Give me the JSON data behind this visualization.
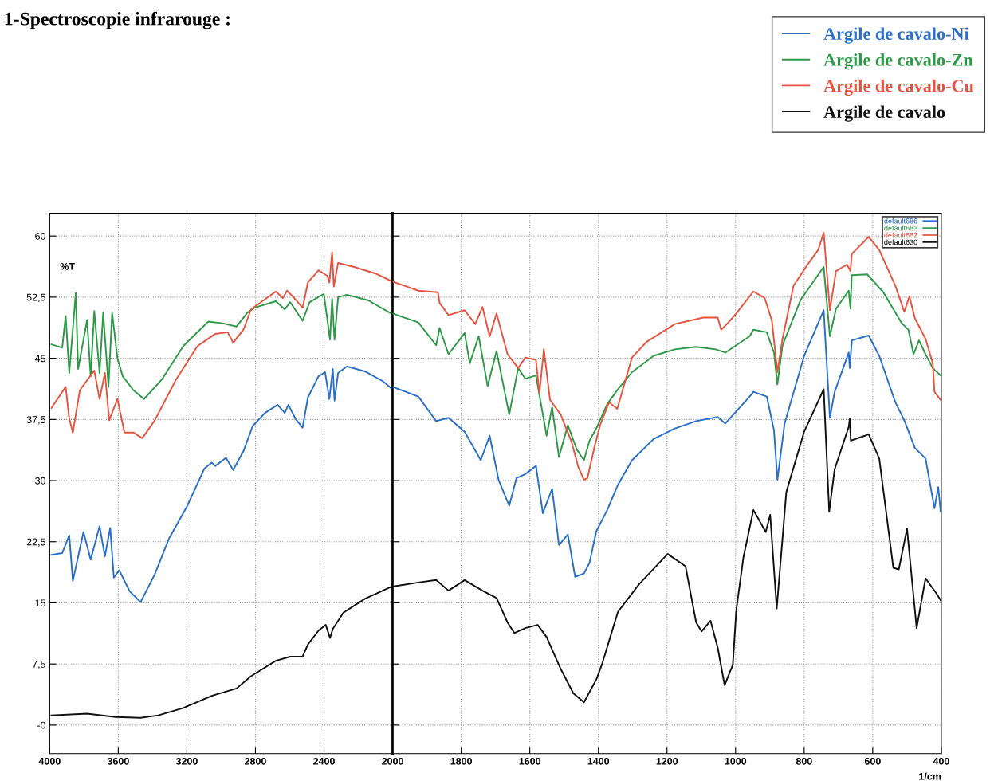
{
  "chart_data": [
    {
      "type": "line",
      "title": "1-Spectroscopie infrarouge :",
      "ylabel": "%T",
      "xlim": [
        4000,
        2000
      ],
      "xticks": [
        4000,
        3600,
        3200,
        2800,
        2400,
        2000
      ],
      "ylim": [
        -3.5,
        62.8
      ],
      "yticks": [
        {
          "value": 0,
          "label": "-0"
        },
        {
          "value": 7.5,
          "label": "7,5"
        },
        15,
        {
          "value": 22.5,
          "label": "22,5"
        },
        30,
        {
          "value": 37.5,
          "label": "37,5"
        },
        45,
        {
          "value": 52.5,
          "label": "52,5"
        },
        60
      ],
      "grid": true,
      "line_style": "solid",
      "series": [
        {
          "color": "#2a6fc9",
          "x": [
            3990,
            3927,
            3886,
            3865,
            3803,
            3761,
            3709,
            3678,
            3647,
            3626,
            3595,
            3533,
            3470,
            3387,
            3304,
            3200,
            3097,
            3055,
            3034,
            2972,
            2930,
            2868,
            2816,
            2744,
            2671,
            2629,
            2608,
            2567,
            2525,
            2494,
            2432,
            2394,
            2369,
            2349,
            2339,
            2318,
            2266,
            2162,
            2058,
            2006,
            2000
          ],
          "values": [
            20.9,
            21.1,
            23.3,
            17.7,
            23.7,
            20.3,
            24.4,
            20.7,
            24.2,
            18.1,
            19.0,
            16.4,
            15.1,
            18.5,
            22.9,
            26.8,
            31.5,
            32.2,
            31.8,
            32.8,
            31.3,
            33.7,
            36.7,
            38.3,
            39.3,
            38.3,
            39.3,
            37.6,
            36.5,
            40.2,
            42.8,
            43.3,
            40.0,
            43.7,
            39.8,
            43.2,
            44.0,
            43.4,
            42.2,
            41.3,
            41.5
          ]
        },
        {
          "color": "#2e9a48",
          "x": [
            3990,
            3927,
            3907,
            3886,
            3848,
            3834,
            3782,
            3761,
            3740,
            3709,
            3688,
            3657,
            3636,
            3605,
            3574,
            3512,
            3450,
            3346,
            3221,
            3076,
            2993,
            2910,
            2847,
            2806,
            2681,
            2629,
            2598,
            2525,
            2484,
            2401,
            2365,
            2353,
            2339,
            2318,
            2266,
            2141,
            2017,
            2000
          ],
          "values": [
            46.7,
            46.3,
            50.2,
            43.2,
            53.0,
            43.7,
            49.7,
            42.8,
            50.8,
            43.2,
            50.6,
            41.5,
            50.6,
            45.0,
            42.8,
            41.1,
            40.0,
            42.4,
            46.5,
            49.5,
            49.3,
            48.9,
            50.6,
            51.2,
            52.0,
            51.0,
            51.9,
            49.6,
            51.9,
            52.9,
            47.3,
            52.3,
            47.3,
            52.5,
            52.8,
            52.1,
            50.6,
            50.5
          ]
        },
        {
          "color": "#e8533f",
          "x": [
            3990,
            3907,
            3886,
            3865,
            3824,
            3740,
            3709,
            3678,
            3653,
            3605,
            3564,
            3512,
            3460,
            3387,
            3263,
            3138,
            3034,
            2962,
            2930,
            2868,
            2826,
            2681,
            2640,
            2616,
            2578,
            2525,
            2494,
            2432,
            2380,
            2369,
            2353,
            2343,
            2318,
            2224,
            2100,
            2000
          ],
          "values": [
            38.9,
            41.5,
            37.6,
            35.9,
            41.1,
            43.5,
            40.0,
            43.2,
            37.4,
            40.0,
            35.9,
            35.9,
            35.2,
            37.4,
            42.4,
            46.5,
            48.0,
            48.2,
            46.9,
            48.6,
            51.0,
            53.2,
            52.4,
            53.3,
            52.5,
            51.2,
            54.3,
            55.8,
            55.1,
            54.3,
            58.0,
            53.8,
            56.7,
            56.2,
            55.4,
            54.4
          ]
        },
        {
          "color": "#111111",
          "x": [
            3990,
            3782,
            3616,
            3470,
            3366,
            3221,
            3055,
            2910,
            2826,
            2681,
            2598,
            2525,
            2494,
            2432,
            2390,
            2365,
            2349,
            2287,
            2162,
            2017,
            2000
          ],
          "values": [
            1.2,
            1.4,
            1.0,
            0.9,
            1.2,
            2.1,
            3.6,
            4.5,
            6.0,
            7.9,
            8.4,
            8.4,
            9.9,
            11.6,
            12.3,
            10.7,
            11.8,
            13.8,
            15.5,
            16.9,
            17.0
          ]
        }
      ]
    },
    {
      "type": "line",
      "xlabel": "1/cm",
      "xlim": [
        2000,
        400
      ],
      "xticks": [
        1800,
        1600,
        1400,
        1200,
        1000,
        800,
        600,
        400
      ],
      "ylim": [
        -3.5,
        62.8
      ],
      "tick_labels": "x",
      "grid": true,
      "legend": "top right",
      "line_style": "solid",
      "annotations": [
        "default686",
        "default683",
        "default682",
        "default630"
      ],
      "series": [
        {
          "name": "Argile de cavalo-Ni",
          "color": "#2a6fc9",
          "x": [
            2000,
            1925,
            1873,
            1837,
            1790,
            1743,
            1717,
            1691,
            1660,
            1639,
            1613,
            1582,
            1562,
            1535,
            1515,
            1489,
            1468,
            1442,
            1426,
            1406,
            1374,
            1343,
            1302,
            1239,
            1177,
            1115,
            1052,
            1030,
            959,
            948,
            909,
            888,
            878,
            857,
            800,
            743,
            725,
            711,
            670,
            667,
            661,
            612,
            581,
            534,
            508,
            477,
            446,
            420,
            409,
            402
          ],
          "values": [
            41.5,
            40.3,
            37.3,
            37.7,
            36.0,
            32.5,
            35.5,
            30.1,
            26.9,
            30.3,
            30.8,
            31.8,
            26.0,
            29.0,
            22.1,
            23.4,
            18.2,
            18.6,
            19.9,
            23.8,
            26.4,
            29.5,
            32.5,
            35.1,
            36.4,
            37.3,
            37.8,
            37.0,
            40.3,
            40.9,
            40.3,
            36.2,
            30.1,
            37.0,
            45.3,
            50.9,
            37.7,
            40.9,
            45.7,
            43.8,
            47.2,
            47.8,
            45.3,
            39.6,
            37.4,
            34.0,
            32.7,
            26.6,
            29.2,
            26.2
          ]
        },
        {
          "name": "Argile de cavalo-Zn",
          "color": "#2e9a48",
          "x": [
            2000,
            1925,
            1873,
            1863,
            1837,
            1790,
            1775,
            1749,
            1723,
            1697,
            1660,
            1634,
            1613,
            1582,
            1551,
            1535,
            1515,
            1489,
            1463,
            1442,
            1426,
            1406,
            1374,
            1343,
            1302,
            1239,
            1177,
            1115,
            1058,
            1030,
            959,
            948,
            909,
            888,
            878,
            863,
            810,
            743,
            725,
            707,
            670,
            665,
            661,
            616,
            569,
            517,
            496,
            481,
            465,
            446,
            425,
            402
          ],
          "values": [
            50.5,
            49.4,
            46.6,
            48.7,
            45.5,
            48.1,
            44.4,
            47.7,
            41.6,
            45.9,
            38.1,
            43.8,
            42.5,
            42.9,
            35.5,
            39.0,
            32.9,
            36.8,
            33.8,
            32.5,
            34.9,
            36.4,
            39.4,
            41.2,
            43.3,
            45.3,
            46.1,
            46.4,
            46.1,
            45.7,
            47.7,
            48.5,
            48.2,
            45.7,
            41.8,
            46.6,
            52.2,
            56.2,
            47.7,
            51.1,
            53.3,
            51.1,
            55.2,
            55.3,
            53.1,
            49.4,
            48.5,
            45.5,
            47.2,
            45.5,
            43.8,
            42.9
          ]
        },
        {
          "name": "Argile de cavalo-Cu",
          "color": "#e8533f",
          "x": [
            2000,
            1925,
            1868,
            1863,
            1837,
            1790,
            1759,
            1738,
            1717,
            1697,
            1665,
            1634,
            1613,
            1582,
            1572,
            1559,
            1541,
            1510,
            1478,
            1458,
            1442,
            1432,
            1411,
            1395,
            1369,
            1345,
            1302,
            1260,
            1177,
            1094,
            1052,
            1042,
            1021,
            998,
            948,
            915,
            894,
            878,
            863,
            831,
            790,
            759,
            743,
            725,
            707,
            675,
            665,
            661,
            612,
            581,
            534,
            508,
            493,
            477,
            446,
            425,
            420,
            402
          ],
          "values": [
            54.4,
            53.3,
            53.1,
            51.8,
            50.3,
            50.9,
            49.2,
            51.3,
            47.7,
            50.5,
            45.5,
            43.8,
            45.1,
            44.8,
            40.7,
            46.1,
            39.9,
            38.1,
            34.7,
            31.6,
            30.1,
            30.3,
            34.2,
            36.8,
            39.6,
            38.8,
            45.1,
            47.0,
            49.2,
            50.0,
            50.0,
            48.5,
            49.4,
            50.5,
            53.2,
            52.4,
            49.6,
            43.3,
            47.4,
            53.9,
            56.5,
            58.3,
            60.4,
            50.9,
            55.7,
            56.5,
            55.7,
            57.8,
            59.9,
            58.3,
            53.9,
            50.7,
            52.6,
            49.9,
            47.4,
            44.4,
            40.9,
            39.9
          ]
        },
        {
          "name": "Argile de cavalo",
          "color": "#111111",
          "x": [
            2000,
            1925,
            1873,
            1837,
            1790,
            1738,
            1697,
            1665,
            1645,
            1613,
            1577,
            1551,
            1510,
            1473,
            1442,
            1406,
            1390,
            1343,
            1281,
            1198,
            1146,
            1115,
            1099,
            1073,
            1052,
            1032,
            1008,
            998,
            977,
            948,
            912,
            899,
            880,
            852,
            800,
            743,
            727,
            711,
            670,
            667,
            664,
            623,
            612,
            581,
            540,
            524,
            500,
            472,
            446,
            415,
            400
          ],
          "values": [
            17.0,
            17.5,
            17.8,
            16.5,
            17.8,
            16.5,
            15.6,
            12.6,
            11.3,
            11.9,
            12.3,
            10.8,
            6.9,
            3.9,
            2.8,
            5.6,
            7.4,
            13.9,
            17.3,
            21.0,
            19.5,
            12.6,
            11.5,
            12.8,
            9.5,
            4.9,
            7.4,
            14.1,
            20.6,
            26.4,
            23.7,
            25.8,
            14.3,
            28.6,
            36.0,
            41.2,
            26.2,
            31.4,
            36.6,
            37.6,
            34.9,
            35.5,
            35.7,
            32.7,
            19.3,
            19.1,
            24.1,
            11.9,
            18.0,
            16.2,
            15.2
          ]
        }
      ]
    }
  ]
}
